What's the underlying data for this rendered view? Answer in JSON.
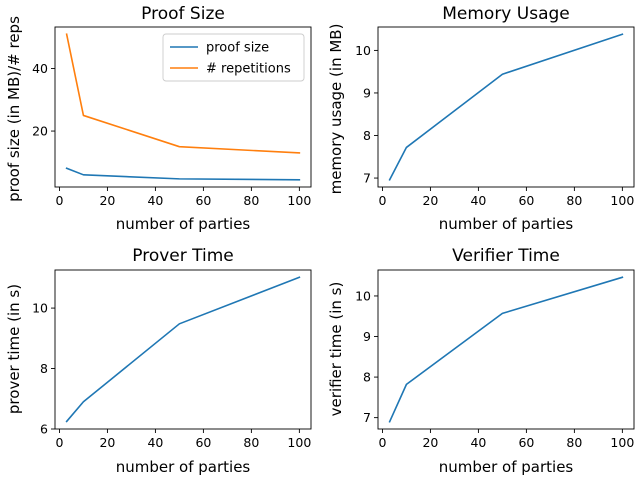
{
  "chart_data": [
    {
      "type": "line",
      "title": "Proof Size",
      "xlabel": "number of parties",
      "ylabel": "proof size (in MB)/# reps",
      "x": [
        3,
        10,
        50,
        100
      ],
      "series": [
        {
          "name": "proof size",
          "values": [
            8.1,
            6.0,
            4.7,
            4.4
          ],
          "color": "#1f77b4"
        },
        {
          "name": "# repetitions",
          "values": [
            51,
            25,
            15,
            13
          ],
          "color": "#ff7f0e"
        }
      ],
      "xlim": [
        -1.85,
        104.85
      ],
      "ylim": [
        2.1,
        53.3
      ],
      "xticks": [
        0,
        20,
        40,
        60,
        80,
        100
      ],
      "yticks": [
        20,
        40
      ],
      "xtick_labels": [
        "0",
        "20",
        "40",
        "60",
        "80",
        "100"
      ],
      "ytick_labels": [
        "20",
        "40"
      ],
      "legend": "top-right",
      "grid": false
    },
    {
      "type": "line",
      "title": "Memory Usage",
      "xlabel": "number of parties",
      "ylabel": "memory usage (in MB)",
      "x": [
        3,
        10,
        50,
        100
      ],
      "series": [
        {
          "values": [
            6.96,
            7.72,
            9.44,
            10.38
          ],
          "color": "#1f77b4"
        }
      ],
      "xlim": [
        -1.85,
        104.85
      ],
      "ylim": [
        6.79,
        10.55
      ],
      "xticks": [
        0,
        20,
        40,
        60,
        80,
        100
      ],
      "yticks": [
        7,
        8,
        9,
        10
      ],
      "xtick_labels": [
        "0",
        "20",
        "40",
        "60",
        "80",
        "100"
      ],
      "ytick_labels": [
        "7",
        "8",
        "9",
        "10"
      ],
      "grid": false
    },
    {
      "type": "line",
      "title": "Prover Time",
      "xlabel": "number of parties",
      "ylabel": "prover time (in s)",
      "x": [
        3,
        10,
        50,
        100
      ],
      "series": [
        {
          "values": [
            6.25,
            6.9,
            9.48,
            11.02
          ],
          "color": "#1f77b4"
        }
      ],
      "xlim": [
        -1.85,
        104.85
      ],
      "ylim": [
        6.0,
        11.26
      ],
      "xticks": [
        0,
        20,
        40,
        60,
        80,
        100
      ],
      "yticks": [
        6,
        8,
        10
      ],
      "xtick_labels": [
        "0",
        "20",
        "40",
        "60",
        "80",
        "100"
      ],
      "ytick_labels": [
        "6",
        "8",
        "10"
      ],
      "grid": false
    },
    {
      "type": "line",
      "title": "Verifier Time",
      "xlabel": "number of parties",
      "ylabel": "verifier time (in s)",
      "x": [
        3,
        10,
        50,
        100
      ],
      "series": [
        {
          "values": [
            6.9,
            7.82,
            9.57,
            10.46
          ],
          "color": "#1f77b4"
        }
      ],
      "xlim": [
        -1.85,
        104.85
      ],
      "ylim": [
        6.72,
        10.64
      ],
      "xticks": [
        0,
        20,
        40,
        60,
        80,
        100
      ],
      "yticks": [
        7,
        8,
        9,
        10
      ],
      "xtick_labels": [
        "0",
        "20",
        "40",
        "60",
        "80",
        "100"
      ],
      "ytick_labels": [
        "7",
        "8",
        "9",
        "10"
      ],
      "grid": false
    }
  ]
}
